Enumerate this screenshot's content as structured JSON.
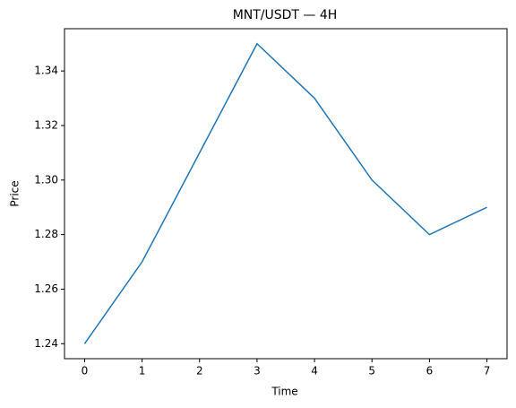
{
  "chart_data": {
    "type": "line",
    "title": "MNT/USDT — 4H",
    "xlabel": "Time",
    "ylabel": "Price",
    "x": [
      0,
      1,
      2,
      3,
      4,
      5,
      6,
      7
    ],
    "series": [
      {
        "color": "#1f77b4",
        "values": [
          1.24,
          1.27,
          1.31,
          1.35,
          1.33,
          1.3,
          1.28,
          1.29
        ]
      }
    ],
    "xlim": [
      -0.35,
      7.35
    ],
    "xticks": [
      0,
      1,
      2,
      3,
      4,
      5,
      6,
      7
    ],
    "ylim": [
      1.2345,
      1.3555
    ],
    "yticks": [
      1.24,
      1.26,
      1.28,
      {
        "value": 1.3,
        "label": "1.30"
      },
      1.32,
      1.34
    ],
    "grid": false
  }
}
